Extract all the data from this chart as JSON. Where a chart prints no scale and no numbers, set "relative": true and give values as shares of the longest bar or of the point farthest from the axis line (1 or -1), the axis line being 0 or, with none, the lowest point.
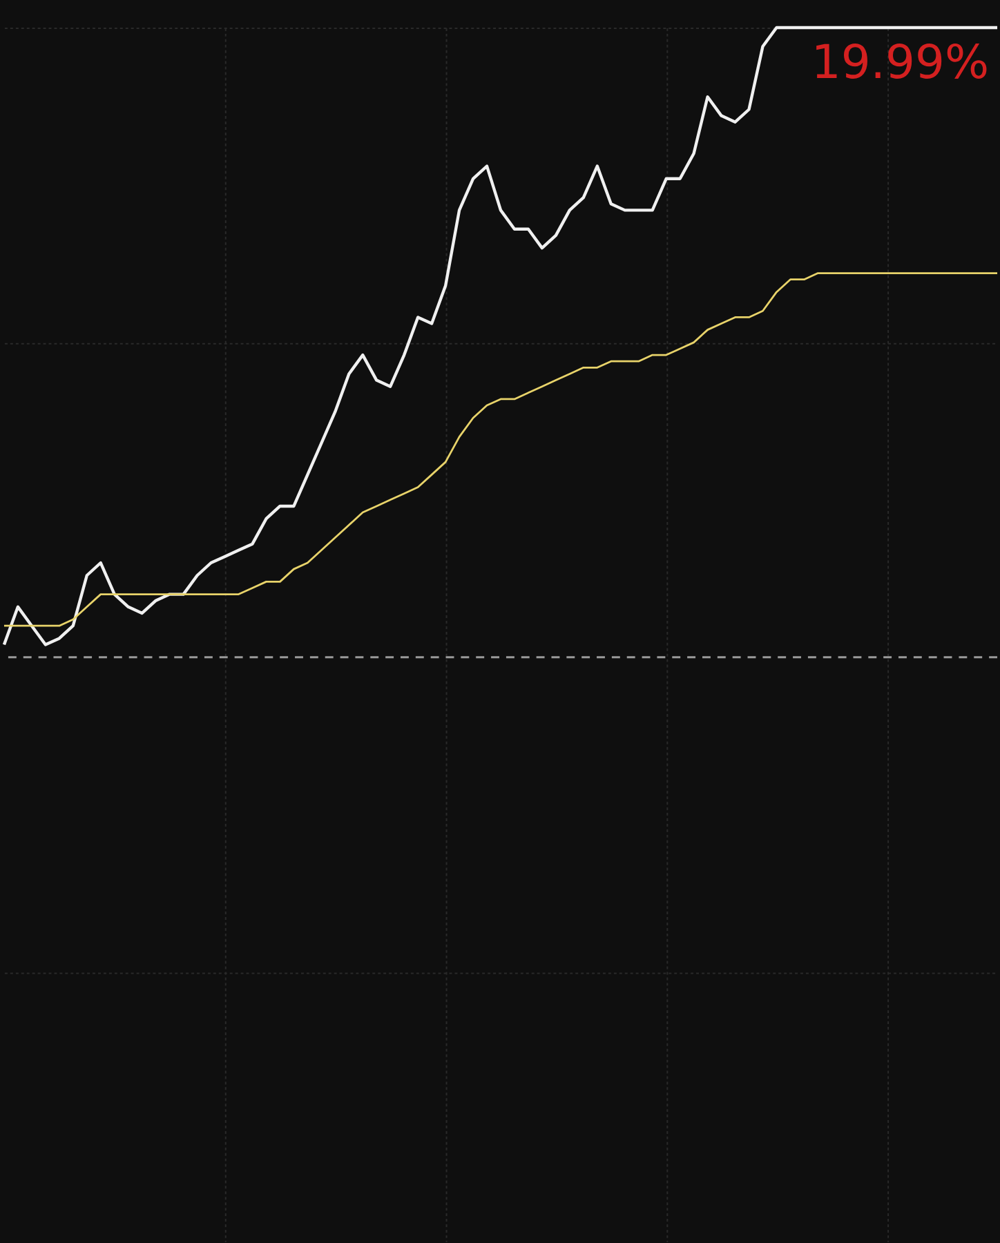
{
  "chart_data": {
    "type": "line",
    "relative": true,
    "categories": [
      null,
      null,
      null,
      null,
      null,
      null,
      null,
      null,
      null,
      null,
      null,
      null,
      null,
      null,
      null,
      null,
      null,
      null,
      null,
      null,
      null,
      null,
      null,
      null,
      null,
      null,
      null,
      null,
      null,
      null,
      null,
      null,
      null,
      null,
      null,
      null,
      null,
      null,
      null,
      null,
      null,
      null,
      null,
      null,
      null,
      null,
      null,
      null,
      null,
      null,
      null,
      null,
      null,
      null,
      null,
      null,
      null,
      null,
      null,
      null,
      null,
      null,
      null,
      null,
      null,
      null,
      null,
      null,
      null,
      null,
      null,
      null,
      null
    ],
    "series": [
      {
        "color": "#f0f0f0",
        "values": [
          0.02,
          0.08,
          0.05,
          0.02,
          0.03,
          0.05,
          0.13,
          0.15,
          0.1,
          0.08,
          0.07,
          0.09,
          0.1,
          0.1,
          0.13,
          0.15,
          0.16,
          0.17,
          0.18,
          0.22,
          0.24,
          0.24,
          0.29,
          0.34,
          0.39,
          0.45,
          0.48,
          0.44,
          0.43,
          0.48,
          0.54,
          0.53,
          0.59,
          0.71,
          0.76,
          0.78,
          0.71,
          0.68,
          0.68,
          0.65,
          0.67,
          0.71,
          0.73,
          0.78,
          0.72,
          0.71,
          0.71,
          0.71,
          0.76,
          0.76,
          0.8,
          0.89,
          0.86,
          0.85,
          0.87,
          0.97,
          1.0,
          1.0,
          1.0,
          1.0,
          1.0,
          1.0,
          1.0,
          1.0,
          1.0,
          1.0,
          1.0,
          1.0,
          1.0,
          1.0,
          1.0,
          1.0,
          1.0
        ]
      },
      {
        "color": "#e8d36a",
        "values": [
          0.05,
          0.05,
          0.05,
          0.05,
          0.05,
          0.06,
          0.08,
          0.1,
          0.1,
          0.1,
          0.1,
          0.1,
          0.1,
          0.1,
          0.1,
          0.1,
          0.1,
          0.1,
          0.11,
          0.12,
          0.12,
          0.14,
          0.15,
          0.17,
          0.19,
          0.21,
          0.23,
          0.24,
          0.25,
          0.26,
          0.27,
          0.29,
          0.31,
          0.35,
          0.38,
          0.4,
          0.41,
          0.41,
          0.42,
          0.43,
          0.44,
          0.45,
          0.46,
          0.46,
          0.47,
          0.47,
          0.47,
          0.48,
          0.48,
          0.49,
          0.5,
          0.52,
          0.53,
          0.54,
          0.54,
          0.55,
          0.58,
          0.6,
          0.6,
          0.61,
          0.61,
          0.61,
          0.61,
          0.61,
          0.61,
          0.61,
          0.61,
          0.61,
          0.61,
          0.61,
          0.61,
          0.61,
          0.61
        ]
      }
    ],
    "ref_lines": [
      {
        "axis": "y",
        "value": 0,
        "color": "#9a9a9a",
        "line_style": "dashed"
      }
    ],
    "annotations": [
      "19.99%"
    ],
    "grid": true,
    "marker": "none",
    "line_style": "solid"
  }
}
